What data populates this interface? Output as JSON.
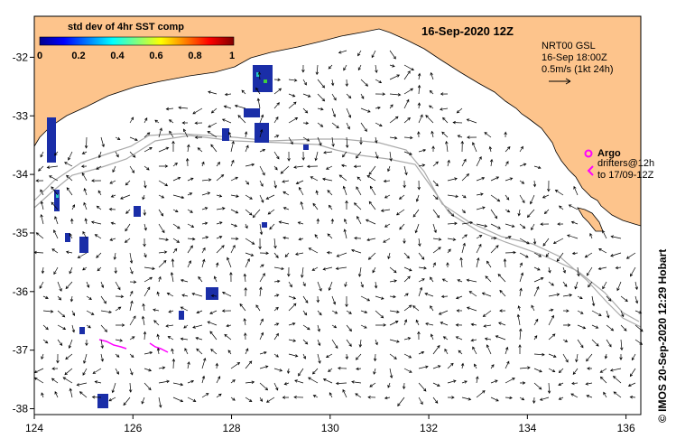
{
  "title": "16-Sep-2020 12Z",
  "colorbar": {
    "title": "std dev of 4hr SST comp",
    "ticks": [
      "0",
      "0.2",
      "0.4",
      "0.6",
      "0.8",
      "1"
    ]
  },
  "current_legend": {
    "line1": "NRT00 GSL",
    "line2": "16-Sep 18:00Z",
    "line3": "0.5m/s (1kt 24h)"
  },
  "argo": {
    "label": "Argo",
    "drifters_line1": "drifters@12h",
    "drifters_line2": "to 17/09-12Z"
  },
  "credit": "©  IMOS 20-Sep-2020 12:29 Hobart",
  "axes": {
    "x_ticks": [
      "124",
      "126",
      "128",
      "130",
      "132",
      "134",
      "136"
    ],
    "y_ticks": [
      "-32",
      "-33",
      "-34",
      "-35",
      "-36",
      "-37",
      "-38"
    ],
    "x_range": [
      124,
      136.3
    ],
    "y_range": [
      -38.1,
      -31.3
    ]
  },
  "colors": {
    "land": "#fdc48c",
    "shelf_line": "#aaaaaa",
    "argo": "#ff00ff",
    "arrow": "#000000"
  }
}
